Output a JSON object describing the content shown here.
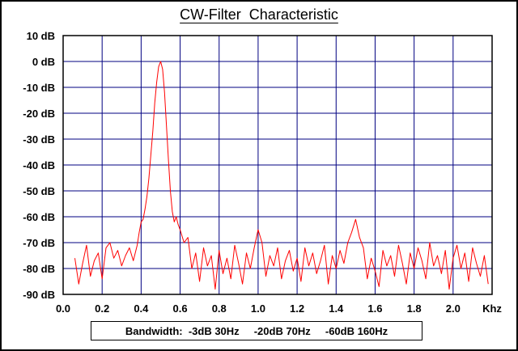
{
  "chart_data": {
    "type": "line",
    "title": "CW-Filter  Characteristic",
    "x_unit_label": "Khz",
    "xlim": [
      0.0,
      2.2
    ],
    "ylim": [
      -90,
      10
    ],
    "grid": true,
    "x_ticks": [
      "0.0",
      "0.2",
      "0.4",
      "0.6",
      "0.8",
      "1.0",
      "1.2",
      "1.4",
      "1.6",
      "1.8",
      "2.0"
    ],
    "y_ticks": [
      "10 dB",
      "0 dB",
      "-10 dB",
      "-20 dB",
      "-30 dB",
      "-40 dB",
      "-50 dB",
      "-60 dB",
      "-70 dB",
      "-80 dB",
      "-90 dB"
    ],
    "colors": {
      "line": "#ff0000",
      "grid": "#000080",
      "frame": "#000000"
    },
    "series": [
      {
        "values_x": [
          0.06,
          0.08,
          0.1,
          0.12,
          0.14,
          0.16,
          0.18,
          0.2,
          0.22,
          0.24,
          0.26,
          0.28,
          0.3,
          0.32,
          0.34,
          0.36,
          0.38,
          0.39,
          0.4,
          0.41,
          0.42,
          0.43,
          0.44,
          0.45,
          0.46,
          0.47,
          0.48,
          0.49,
          0.5,
          0.51,
          0.52,
          0.53,
          0.54,
          0.55,
          0.56,
          0.57,
          0.58,
          0.59,
          0.6,
          0.62,
          0.64,
          0.66,
          0.68,
          0.7,
          0.72,
          0.74,
          0.76,
          0.78,
          0.8,
          0.82,
          0.84,
          0.86,
          0.88,
          0.9,
          0.92,
          0.94,
          0.96,
          0.98,
          1.0,
          1.02,
          1.04,
          1.06,
          1.08,
          1.1,
          1.12,
          1.14,
          1.16,
          1.18,
          1.2,
          1.22,
          1.24,
          1.26,
          1.28,
          1.3,
          1.32,
          1.34,
          1.36,
          1.38,
          1.4,
          1.42,
          1.44,
          1.46,
          1.48,
          1.5,
          1.52,
          1.54,
          1.56,
          1.58,
          1.6,
          1.62,
          1.64,
          1.66,
          1.68,
          1.7,
          1.72,
          1.74,
          1.76,
          1.78,
          1.8,
          1.82,
          1.84,
          1.86,
          1.88,
          1.9,
          1.92,
          1.94,
          1.96,
          1.98,
          2.0,
          2.02,
          2.04,
          2.06,
          2.08,
          2.1,
          2.12,
          2.14,
          2.16,
          2.18
        ],
        "values_y": [
          -76,
          -86,
          -78,
          -71,
          -83,
          -77,
          -74,
          -84,
          -72,
          -70,
          -76,
          -73,
          -79,
          -75,
          -72,
          -77,
          -71,
          -66,
          -62,
          -61,
          -57,
          -52,
          -45,
          -36,
          -27,
          -16,
          -8,
          -2,
          0,
          -3,
          -12,
          -25,
          -38,
          -50,
          -58,
          -62,
          -60,
          -63,
          -65,
          -70,
          -68,
          -80,
          -74,
          -85,
          -72,
          -79,
          -75,
          -88,
          -73,
          -82,
          -76,
          -84,
          -71,
          -78,
          -86,
          -74,
          -80,
          -72,
          -65,
          -70,
          -83,
          -75,
          -79,
          -72,
          -84,
          -77,
          -73,
          -81,
          -76,
          -85,
          -72,
          -79,
          -74,
          -82,
          -77,
          -71,
          -86,
          -75,
          -80,
          -73,
          -78,
          -70,
          -66,
          -61,
          -68,
          -72,
          -84,
          -76,
          -81,
          -87,
          -73,
          -79,
          -75,
          -83,
          -71,
          -78,
          -86,
          -74,
          -80,
          -72,
          -77,
          -84,
          -70,
          -79,
          -75,
          -82,
          -73,
          -88,
          -76,
          -71,
          -80,
          -74,
          -85,
          -72,
          -78,
          -83,
          -75,
          -86
        ]
      }
    ]
  },
  "legend": {
    "text": "Bandwidth:  -3dB 30Hz     -20dB 70Hz     -60dB 160Hz"
  }
}
